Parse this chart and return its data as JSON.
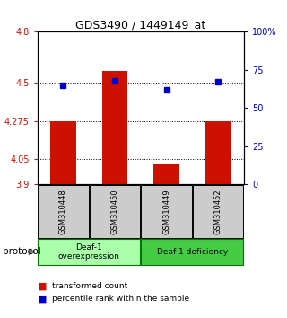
{
  "title": "GDS3490 / 1449149_at",
  "samples": [
    "GSM310448",
    "GSM310450",
    "GSM310449",
    "GSM310452"
  ],
  "bar_values": [
    4.275,
    4.57,
    4.02,
    4.275
  ],
  "blue_values": [
    65,
    68,
    62,
    67
  ],
  "ylim": [
    3.9,
    4.8
  ],
  "y_ticks": [
    3.9,
    4.05,
    4.275,
    4.5,
    4.8
  ],
  "y_tick_labels": [
    "3.9",
    "4.05",
    "4.275",
    "4.5",
    "4.8"
  ],
  "y2_ticks": [
    0,
    25,
    50,
    75,
    100
  ],
  "y2_tick_labels": [
    "0",
    "25",
    "50",
    "75",
    "100%"
  ],
  "bar_color": "#cc1100",
  "blue_color": "#0000cc",
  "grid_lines": [
    4.05,
    4.275,
    4.5
  ],
  "groups": [
    {
      "label": "Deaf-1\noverexpression",
      "samples": [
        0,
        1
      ],
      "color": "#aaffaa"
    },
    {
      "label": "Deaf-1 deficiency",
      "samples": [
        2,
        3
      ],
      "color": "#44cc44"
    }
  ],
  "protocol_label": "protocol",
  "legend_bar_label": "transformed count",
  "legend_blue_label": "percentile rank within the sample",
  "sample_box_color": "#cccccc",
  "bar_width": 0.5
}
